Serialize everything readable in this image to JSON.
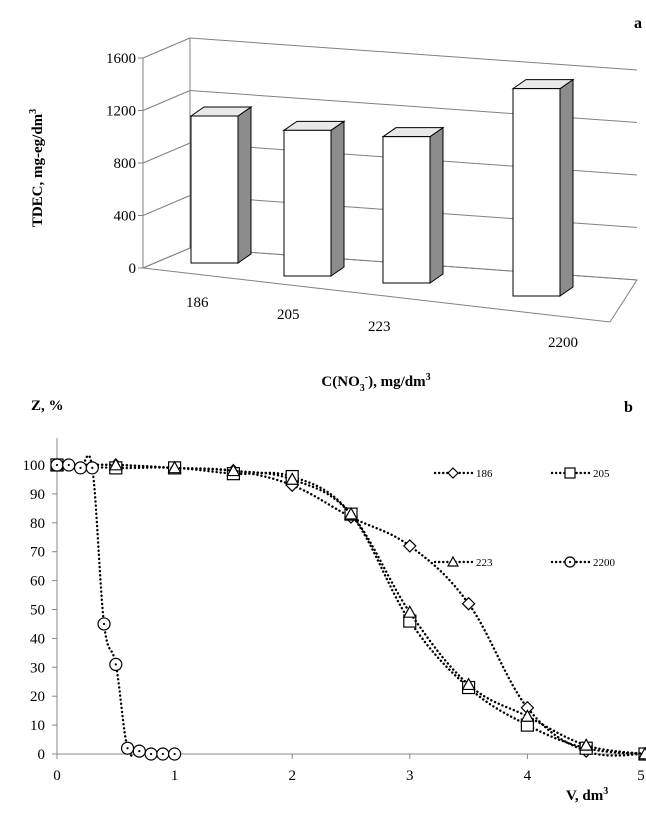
{
  "chart_data": [
    {
      "type": "bar",
      "panel_label": "a",
      "ylabel_main": "TDEC, mg-eg/dm",
      "ylabel_sup": "3",
      "xlabel_pre": "C(NO",
      "xlabel_sub": "3",
      "xlabel_supminus": "-",
      "xlabel_post": "), mg/dm",
      "xlabel_sup": "3",
      "categories": [
        "186",
        "205",
        "223",
        "2200"
      ],
      "values": [
        1120,
        1110,
        1115,
        1580
      ],
      "ylim": [
        0,
        1600
      ],
      "yticks": [
        "0",
        "400",
        "800",
        "1200",
        "1600"
      ],
      "grid": true,
      "style": "3d-columns",
      "bar_front_color": "#ffffff",
      "bar_side_color": "#8c8c8c",
      "bar_top_color": "#e8e8e8"
    },
    {
      "type": "line",
      "panel_label": "b",
      "ylabel_visible": "Z, %",
      "xlabel_main": "V, dm",
      "xlabel_sup": "3",
      "xlim": [
        0,
        5
      ],
      "ylim": [
        0,
        100
      ],
      "xticks": [
        "0",
        "1",
        "2",
        "3",
        "4",
        "5"
      ],
      "yticks": [
        "0",
        "10",
        "20",
        "30",
        "40",
        "50",
        "60",
        "70",
        "80",
        "90",
        "100"
      ],
      "grid": false,
      "legend_position": "top-right",
      "series": [
        {
          "name": "186",
          "marker": "diamond",
          "x": [
            0,
            0.5,
            1,
            1.5,
            2,
            2.5,
            3,
            3.5,
            4,
            4.5,
            5
          ],
          "y": [
            100,
            100,
            99,
            98,
            93,
            82,
            72,
            52,
            16,
            1,
            0
          ]
        },
        {
          "name": "205",
          "marker": "square",
          "x": [
            0,
            0.5,
            1,
            1.5,
            2,
            2.5,
            3,
            3.5,
            4,
            4.5,
            5
          ],
          "y": [
            100,
            99,
            99,
            97,
            96,
            83,
            46,
            23,
            10,
            2,
            0
          ]
        },
        {
          "name": "223",
          "marker": "triangle",
          "x": [
            0,
            0.5,
            1,
            1.5,
            2,
            2.5,
            3,
            3.5,
            4,
            4.5,
            5
          ],
          "y": [
            100,
            100,
            99,
            98,
            95,
            83,
            49,
            24,
            13,
            3,
            0
          ]
        },
        {
          "name": "2200",
          "marker": "circle",
          "x": [
            0,
            0.1,
            0.2,
            0.3,
            0.4,
            0.5,
            0.6,
            0.7,
            0.8,
            0.9,
            1
          ],
          "y": [
            100,
            100,
            99,
            99,
            45,
            31,
            2,
            1,
            0,
            0,
            0
          ]
        }
      ]
    }
  ]
}
